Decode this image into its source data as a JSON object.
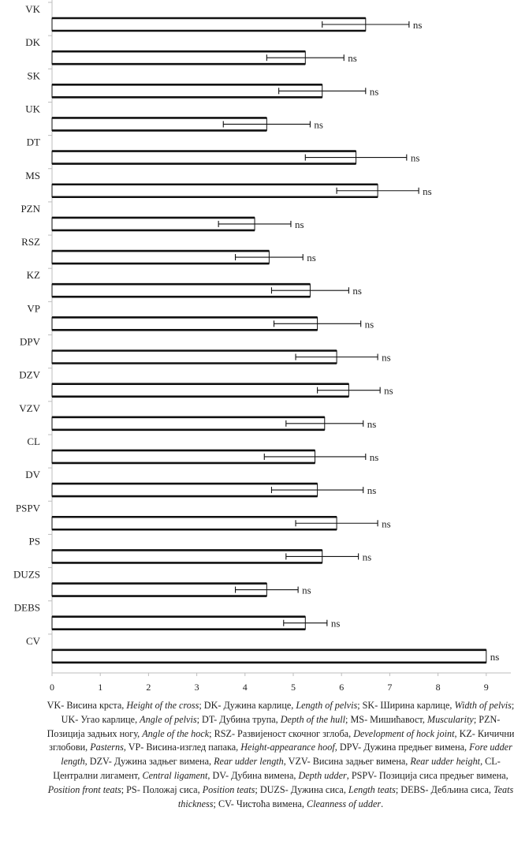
{
  "chart_data": {
    "type": "bar",
    "orientation": "horizontal",
    "categories": [
      "VK",
      "DK",
      "SK",
      "UK",
      "DT",
      "MS",
      "PZN",
      "RSZ",
      "KZ",
      "VP",
      "DPV",
      "DZV",
      "VZV",
      "CL",
      "DV",
      "PSPV",
      "PS",
      "DUZS",
      "DEBS",
      "CV"
    ],
    "values": [
      6.5,
      5.25,
      5.6,
      4.45,
      6.3,
      6.75,
      4.2,
      4.5,
      5.35,
      5.5,
      5.9,
      6.15,
      5.65,
      5.45,
      5.5,
      5.9,
      5.6,
      4.45,
      5.25,
      9.0
    ],
    "errors": [
      0.9,
      0.8,
      0.9,
      0.9,
      1.05,
      0.85,
      0.75,
      0.7,
      0.8,
      0.9,
      0.85,
      0.65,
      0.8,
      1.05,
      0.95,
      0.85,
      0.75,
      0.65,
      0.45,
      0
    ],
    "fills": [
      "white",
      "white",
      "white",
      "white",
      "white",
      "white",
      "white",
      "white",
      "white",
      "white",
      "white",
      "white",
      "white",
      "white",
      "white",
      "white",
      "white",
      "white",
      "white",
      "white"
    ],
    "significance": [
      "ns",
      "ns",
      "ns",
      "ns",
      "ns",
      "ns",
      "ns",
      "ns",
      "ns",
      "ns",
      "ns",
      "ns",
      "ns",
      "ns",
      "ns",
      "ns",
      "ns",
      "ns",
      "ns",
      "ns"
    ],
    "xlim": [
      0,
      9
    ],
    "xticks": [
      "0",
      "1",
      "2",
      "3",
      "4",
      "5",
      "6",
      "7",
      "8",
      "9"
    ],
    "title": "",
    "xlabel": "",
    "ylabel": "",
    "grid": false,
    "legend": "none"
  },
  "caption": [
    {
      "t": "VK- Висина крста, ",
      "i": false
    },
    {
      "t": "Height of the cross",
      "i": true
    },
    {
      "t": "; DK- Дужина карлице, ",
      "i": false
    },
    {
      "t": "Length of pelvis",
      "i": true
    },
    {
      "t": "; SK- Ширина карлице, ",
      "i": false
    },
    {
      "t": "Width of pelvis",
      "i": true
    },
    {
      "t": "; UK- Угао карлице, ",
      "i": false
    },
    {
      "t": "Angle of pelvis",
      "i": true
    },
    {
      "t": "; DT- Дубина трупа, ",
      "i": false
    },
    {
      "t": "Depth of the hull",
      "i": true
    },
    {
      "t": "; MS- Мишићавост, ",
      "i": false
    },
    {
      "t": "Muscularity",
      "i": true
    },
    {
      "t": "; PZN- Позиција задњих ногу, ",
      "i": false
    },
    {
      "t": "Angle of the hock",
      "i": true
    },
    {
      "t": "; RSZ- Развијеност скочног зглоба, ",
      "i": false
    },
    {
      "t": "Development of hock joint",
      "i": true
    },
    {
      "t": ", KZ- Кичични зглобови, ",
      "i": false
    },
    {
      "t": "Pasterns",
      "i": true
    },
    {
      "t": ", VP- Висина-изглед папака, ",
      "i": false
    },
    {
      "t": "Height-appearance hoof",
      "i": true
    },
    {
      "t": ", DPV- Дужина предњег вимена, ",
      "i": false
    },
    {
      "t": "Fore udder length",
      "i": true
    },
    {
      "t": ", DZV- Дужина задњег вимена, ",
      "i": false
    },
    {
      "t": "Rear udder length",
      "i": true
    },
    {
      "t": ", VZV- Висина задњег вимена, ",
      "i": false
    },
    {
      "t": "Rear udder height",
      "i": true
    },
    {
      "t": ", CL- Централни лигамент, ",
      "i": false
    },
    {
      "t": "Central ligament",
      "i": true
    },
    {
      "t": ", DV- Дубина вимена, ",
      "i": false
    },
    {
      "t": "Depth udder",
      "i": true
    },
    {
      "t": ", PSPV- Позиција сиса предњег вимена, ",
      "i": false
    },
    {
      "t": "Position front teats",
      "i": true
    },
    {
      "t": "; PS- Положај сиса, ",
      "i": false
    },
    {
      "t": "Position teats",
      "i": true
    },
    {
      "t": "; DUZS- Дужина сиса, ",
      "i": false
    },
    {
      "t": "Length teats",
      "i": true
    },
    {
      "t": "; DEBS- Дебљина сиса, ",
      "i": false
    },
    {
      "t": "Teats thickness",
      "i": true
    },
    {
      "t": "; CV- Чистоћа вимена, ",
      "i": false
    },
    {
      "t": "Cleanness of udder",
      "i": true
    },
    {
      "t": ".",
      "i": false
    }
  ]
}
